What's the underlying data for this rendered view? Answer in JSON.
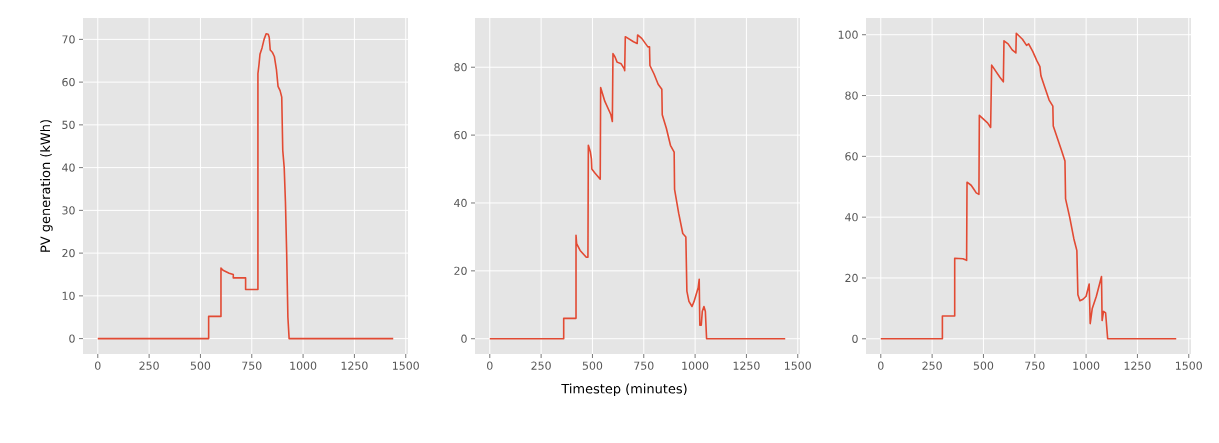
{
  "chart_data": [
    {
      "type": "line",
      "ylabel": "PV generation (kWh)",
      "xlim": [
        -72,
        1511
      ],
      "ylim": [
        -3.6,
        75
      ],
      "xticks": [
        0,
        250,
        500,
        750,
        1000,
        1250,
        1500
      ],
      "yticks": [
        0,
        10,
        20,
        30,
        40,
        50,
        60,
        70
      ],
      "grid": true,
      "x": [
        0,
        540,
        540,
        600,
        600,
        610,
        640,
        660,
        660,
        720,
        720,
        780,
        780,
        785,
        790,
        800,
        810,
        820,
        830,
        835,
        840,
        850,
        860,
        870,
        878,
        888,
        896,
        901,
        908,
        914,
        920,
        926,
        932,
        1439
      ],
      "series": [
        {
          "color": "#e24a33",
          "values": [
            0,
            0,
            5.2,
            5.2,
            16.5,
            16,
            15.3,
            15,
            14.2,
            14.2,
            11.5,
            11.5,
            62,
            64,
            66.5,
            68,
            70,
            71.3,
            71.2,
            70.5,
            67.5,
            67,
            66,
            63,
            59,
            58,
            56.5,
            44,
            40,
            32,
            20,
            5,
            0,
            0
          ]
        }
      ]
    },
    {
      "type": "line",
      "xlabel": "Timestep (minutes)",
      "xlim": [
        -72,
        1511
      ],
      "ylim": [
        -4.5,
        94.5
      ],
      "xticks": [
        0,
        250,
        500,
        750,
        1000,
        1250,
        1500
      ],
      "yticks": [
        0,
        20,
        40,
        60,
        80
      ],
      "grid": true,
      "x": [
        0,
        360,
        360,
        420,
        420,
        423,
        440,
        470,
        478,
        480,
        490,
        495,
        497,
        510,
        538,
        540,
        560,
        590,
        597,
        600,
        610,
        620,
        640,
        655,
        657,
        660,
        700,
        718,
        720,
        740,
        770,
        778,
        780,
        800,
        820,
        838,
        840,
        860,
        880,
        898,
        900,
        920,
        940,
        955,
        960,
        970,
        985,
        995,
        1015,
        1020,
        1023,
        1030,
        1035,
        1043,
        1050,
        1056,
        1439
      ],
      "series": [
        {
          "color": "#e24a33",
          "values": [
            0,
            0,
            6,
            6,
            30.5,
            28,
            26,
            24,
            24,
            57,
            55,
            53,
            50,
            49,
            47,
            74,
            70,
            66,
            64,
            84,
            83,
            81.5,
            81,
            79.5,
            79,
            89,
            87.5,
            87,
            89.5,
            88.5,
            86,
            86,
            80.5,
            78,
            75,
            73.5,
            66,
            62,
            57,
            55,
            44,
            37,
            31,
            30,
            14,
            11,
            9.5,
            11,
            15,
            17.5,
            4,
            4,
            8,
            9.5,
            8,
            0,
            0
          ]
        }
      ]
    },
    {
      "type": "line",
      "xlim": [
        -72,
        1511
      ],
      "ylim": [
        -5,
        105.5
      ],
      "xticks": [
        0,
        250,
        500,
        750,
        1000,
        1250,
        1500
      ],
      "yticks": [
        0,
        20,
        40,
        60,
        80,
        100
      ],
      "grid": true,
      "x": [
        0,
        300,
        300,
        360,
        360,
        400,
        418,
        420,
        440,
        455,
        465,
        478,
        480,
        520,
        535,
        540,
        560,
        580,
        597,
        600,
        620,
        640,
        658,
        660,
        690,
        710,
        720,
        740,
        760,
        775,
        780,
        800,
        820,
        838,
        840,
        860,
        880,
        897,
        900,
        920,
        940,
        955,
        960,
        970,
        985,
        1000,
        1015,
        1020,
        1030,
        1050,
        1075,
        1078,
        1085,
        1095,
        1105,
        1439
      ],
      "series": [
        {
          "color": "#e24a33",
          "values": [
            0,
            0,
            7.5,
            7.5,
            26.5,
            26.3,
            25.8,
            51.5,
            50.5,
            49,
            48,
            47.5,
            73.5,
            71,
            69.5,
            90,
            88,
            86,
            84.5,
            98,
            97,
            95,
            94,
            100.5,
            98.5,
            96.5,
            97,
            94.5,
            91.5,
            89.5,
            86.5,
            82.5,
            78.5,
            76.5,
            70,
            66,
            62,
            58.5,
            46,
            40,
            33,
            29,
            14.5,
            12.5,
            13,
            14,
            18,
            5,
            10,
            14,
            20.5,
            6,
            9,
            8.5,
            0,
            0
          ]
        }
      ]
    }
  ]
}
